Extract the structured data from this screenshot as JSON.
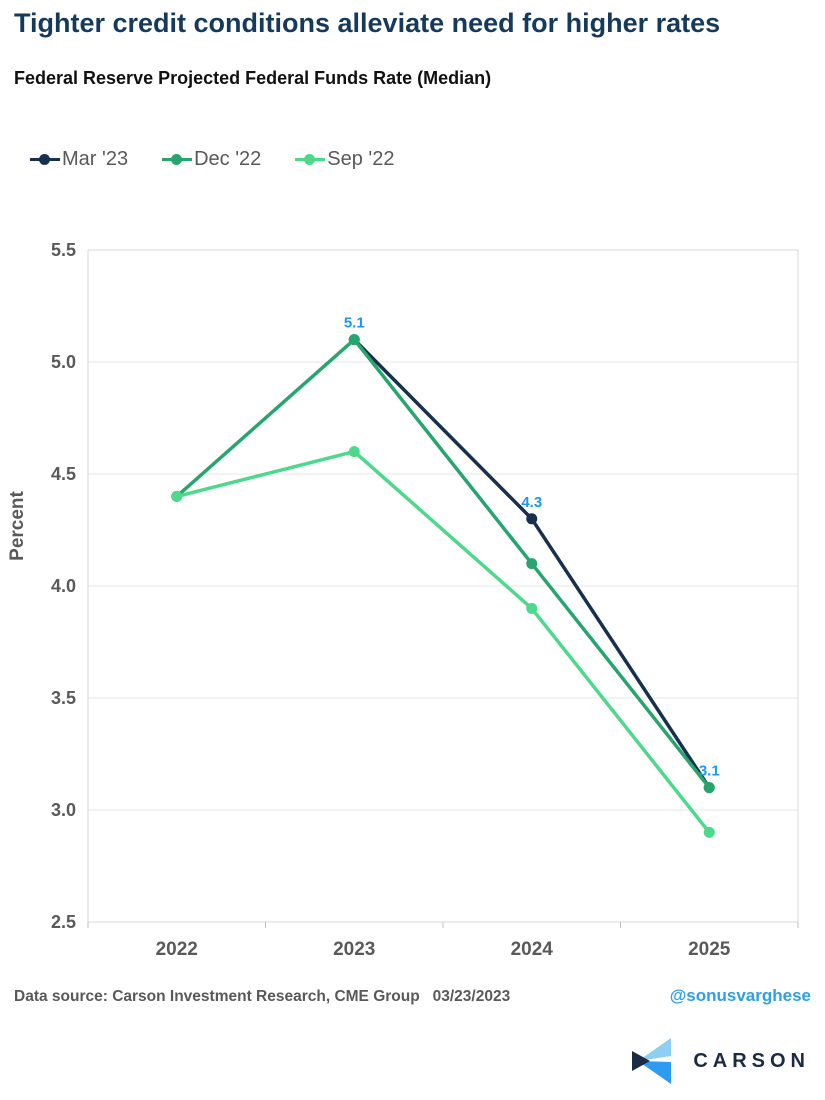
{
  "header": {
    "title": "Tighter credit conditions alleviate need for higher rates",
    "subtitle": "Federal Reserve Projected Federal Funds Rate (Median)"
  },
  "chart_data": {
    "type": "line",
    "title": "Federal Reserve Projected Federal Funds Rate (Median)",
    "categories": [
      "2022",
      "2023",
      "2024",
      "2025"
    ],
    "series": [
      {
        "name": "Mar '23",
        "color": "#16304d",
        "x": [
          "2023",
          "2024",
          "2025"
        ],
        "values": [
          5.1,
          4.3,
          3.1
        ],
        "point_labels": [
          "5.1",
          "4.3",
          "3.1"
        ],
        "label_color": "#1f97f0"
      },
      {
        "name": "Dec '22",
        "color": "#27a56f",
        "x": [
          "2022",
          "2023",
          "2024",
          "2025"
        ],
        "values": [
          4.4,
          5.1,
          4.1,
          3.1
        ]
      },
      {
        "name": "Sep '22",
        "color": "#4dd98b",
        "x": [
          "2022",
          "2023",
          "2024",
          "2025"
        ],
        "values": [
          4.4,
          4.6,
          3.9,
          2.9
        ]
      }
    ],
    "xlabel": "",
    "ylabel": "Percent",
    "ylim": [
      2.5,
      5.5
    ],
    "y_ticks": [
      "5.5",
      "5.0",
      "4.5",
      "4.0",
      "3.5",
      "3.0",
      "2.5"
    ],
    "grid": "horizontal",
    "legend_position": "top-left",
    "grid_color": "#e7e7e7",
    "border_color": "#d8d8d8",
    "tick_color": "#bfbfbf"
  },
  "footer": {
    "source": "Data source: Carson Investment Research, CME Group   03/23/2023",
    "handle": "@sonusvarghese",
    "handle_color": "#2e9fe8"
  },
  "logo": {
    "text": "CARSON",
    "text_color": "#1b2b45",
    "icon_light": "#8ccff2",
    "icon_bright": "#2d9cf0",
    "icon_navy": "#1b2b45"
  }
}
